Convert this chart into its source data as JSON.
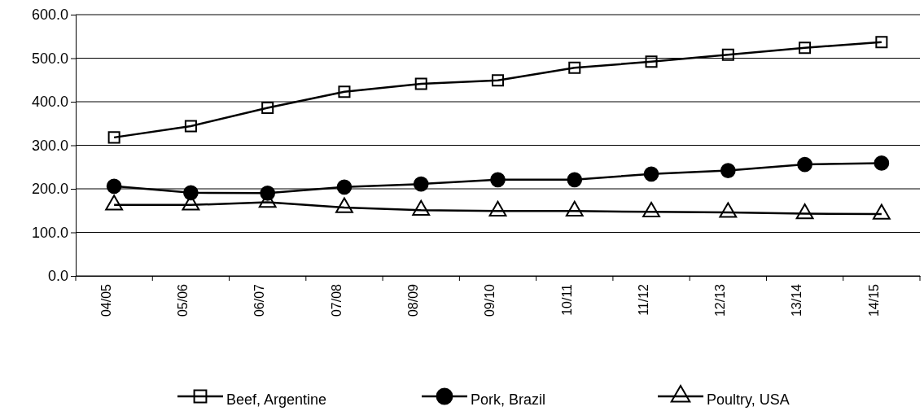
{
  "chart_data": {
    "type": "line",
    "categories": [
      "04/05",
      "05/06",
      "06/07",
      "07/08",
      "08/09",
      "09/10",
      "10/11",
      "11/12",
      "12/13",
      "13/14",
      "14/15"
    ],
    "series": [
      {
        "name": "Beef, Argentine",
        "color": "#000000",
        "marker": "square",
        "values": [
          318,
          344,
          386,
          423,
          441,
          449,
          478,
          492,
          508,
          524,
          537
        ]
      },
      {
        "name": "Pork, Brazil",
        "color": "#000000",
        "marker": "circle",
        "values": [
          206,
          191,
          190,
          204,
          211,
          221,
          221,
          234,
          242,
          256,
          259
        ]
      },
      {
        "name": "Poultry, USA",
        "color": "#000000",
        "marker": "triangle",
        "values": [
          163,
          163,
          169,
          157,
          151,
          149,
          149,
          147,
          146,
          143,
          142
        ]
      }
    ],
    "ylim": [
      0,
      600
    ],
    "yticks": [
      {
        "value": 0,
        "label": "0.0"
      },
      {
        "value": 100,
        "label": "100.0"
      },
      {
        "value": 200,
        "label": "200.0"
      },
      {
        "value": 300,
        "label": "300.0"
      },
      {
        "value": 400,
        "label": "400.0"
      },
      {
        "value": 500,
        "label": "500.0"
      },
      {
        "value": 600,
        "label": "600.0"
      }
    ],
    "grid": "y",
    "legend": "bottom",
    "line_style": "solid"
  }
}
